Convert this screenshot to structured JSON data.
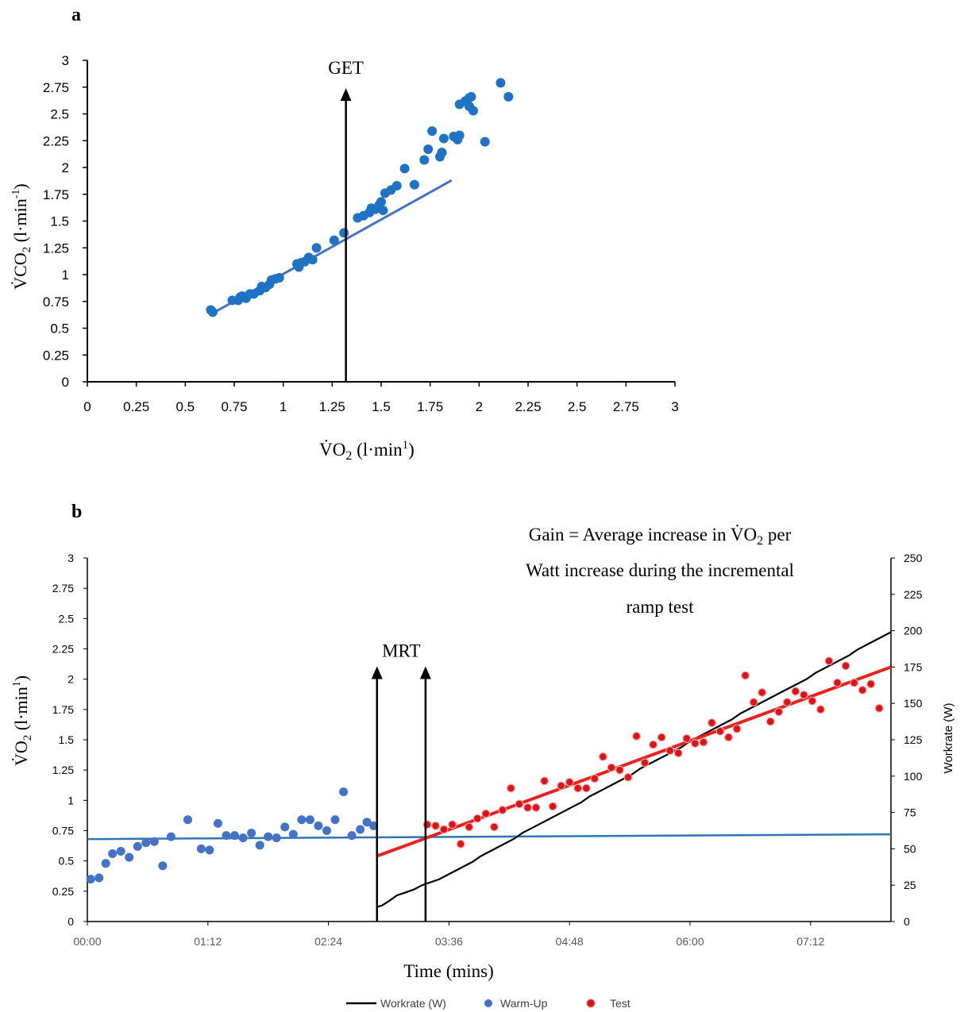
{
  "colors": {
    "warmup": "#4472C4",
    "scatter_a": "#1F72C4",
    "fit_a": "#4472C4",
    "test": "#E8221C",
    "test_fill": "#D8161A",
    "baseline": "#2E75B6",
    "workrate": "#000000",
    "axis": "#000000",
    "tick_gray": "#595959"
  },
  "chart_data": [
    {
      "panel_label": "a",
      "type": "scatter",
      "xlabel_main": "V̇O",
      "xlabel_sub": "2",
      "xlabel_rest": " (l·min",
      "xlabel_sup": "1",
      "xlabel_close": ")",
      "ylabel_main": "V̇CO",
      "ylabel_sub": "2",
      "ylabel_rest": " (l·min",
      "ylabel_sup": "-1",
      "ylabel_close": ")",
      "xlim": [
        0,
        3
      ],
      "ylim": [
        0,
        3
      ],
      "x_ticks": [
        "0",
        "0.25",
        "0.5",
        "0.75",
        "1",
        "1.25",
        "1.5",
        "1.75",
        "2",
        "2.25",
        "2.5",
        "2.75",
        "3"
      ],
      "y_ticks": [
        "0",
        "0.25",
        "0.5",
        "0.75",
        "1",
        "1.25",
        "1.5",
        "1.75",
        "2",
        "2.25",
        "2.5",
        "2.75",
        "3"
      ],
      "annotation": {
        "text": "GET",
        "x": 1.32,
        "y_top": 2.71
      },
      "fit_line": {
        "x": [
          0.64,
          1.86
        ],
        "y": [
          0.64,
          1.88
        ]
      },
      "points": [
        [
          0.63,
          0.67
        ],
        [
          0.64,
          0.65
        ],
        [
          0.74,
          0.76
        ],
        [
          0.77,
          0.76
        ],
        [
          0.78,
          0.79
        ],
        [
          0.79,
          0.8
        ],
        [
          0.81,
          0.78
        ],
        [
          0.83,
          0.82
        ],
        [
          0.85,
          0.82
        ],
        [
          0.88,
          0.85
        ],
        [
          0.89,
          0.89
        ],
        [
          0.91,
          0.88
        ],
        [
          0.93,
          0.91
        ],
        [
          0.94,
          0.95
        ],
        [
          0.96,
          0.96
        ],
        [
          0.98,
          0.97
        ],
        [
          1.07,
          1.1
        ],
        [
          1.08,
          1.07
        ],
        [
          1.09,
          1.11
        ],
        [
          1.11,
          1.12
        ],
        [
          1.13,
          1.16
        ],
        [
          1.15,
          1.14
        ],
        [
          1.17,
          1.25
        ],
        [
          1.26,
          1.32
        ],
        [
          1.31,
          1.39
        ],
        [
          1.38,
          1.53
        ],
        [
          1.41,
          1.55
        ],
        [
          1.44,
          1.58
        ],
        [
          1.45,
          1.62
        ],
        [
          1.47,
          1.61
        ],
        [
          1.49,
          1.65
        ],
        [
          1.5,
          1.68
        ],
        [
          1.51,
          1.6
        ],
        [
          1.52,
          1.76
        ],
        [
          1.55,
          1.79
        ],
        [
          1.58,
          1.83
        ],
        [
          1.62,
          1.99
        ],
        [
          1.67,
          1.84
        ],
        [
          1.72,
          2.07
        ],
        [
          1.74,
          2.17
        ],
        [
          1.76,
          2.34
        ],
        [
          1.8,
          2.1
        ],
        [
          1.81,
          2.14
        ],
        [
          1.82,
          2.27
        ],
        [
          1.87,
          2.29
        ],
        [
          1.89,
          2.26
        ],
        [
          1.9,
          2.3
        ],
        [
          1.9,
          2.59
        ],
        [
          1.93,
          2.62
        ],
        [
          1.95,
          2.57
        ],
        [
          1.95,
          2.65
        ],
        [
          1.96,
          2.66
        ],
        [
          1.97,
          2.53
        ],
        [
          2.03,
          2.24
        ],
        [
          2.11,
          2.79
        ],
        [
          2.15,
          2.66
        ]
      ]
    },
    {
      "panel_label": "b",
      "type": "scatter",
      "xlabel": "Time (mins)",
      "ylabel_main": "V̇O",
      "ylabel_sub": "2",
      "ylabel_rest": " (l·min",
      "ylabel_sup": "1",
      "ylabel_close": ")",
      "y2label": "Workrate (W)",
      "ylim": [
        0,
        3
      ],
      "y2lim": [
        0,
        250
      ],
      "xlim_seconds": [
        0,
        480
      ],
      "x_ticks": [
        "00:00",
        "01:12",
        "02:24",
        "03:36",
        "04:48",
        "06:00",
        "07:12"
      ],
      "y_ticks": [
        "0",
        "0.25",
        "0.5",
        "0.75",
        "1",
        "1.25",
        "1.5",
        "1.75",
        "2",
        "2.25",
        "2.5",
        "2.75",
        "3"
      ],
      "y2_ticks": [
        "0",
        "25",
        "50",
        "75",
        "100",
        "125",
        "150",
        "175",
        "200",
        "225",
        "250"
      ],
      "annotation": {
        "text": "MRT",
        "arrow_x_seconds": [
          173,
          202
        ],
        "y_top": 2.08
      },
      "gain_text": [
        "Gain = Average increase in V̇O",
        "2",
        " per",
        "Watt increase during the incremental",
        "ramp test"
      ],
      "legend": [
        "Workrate (W)",
        "Warm-Up",
        "Test"
      ],
      "baseline_line": {
        "x": [
          0,
          480
        ],
        "y": [
          0.68,
          0.72
        ]
      },
      "test_fit_line": {
        "x": [
          173,
          480
        ],
        "y": [
          0.54,
          2.1
        ]
      },
      "workrate_line": {
        "x": [
          173,
          176,
          180,
          185,
          190,
          195,
          200,
          205,
          210,
          215,
          220,
          225,
          230,
          235,
          240,
          245,
          250,
          255,
          260,
          265,
          270,
          275,
          280,
          285,
          290,
          295,
          300,
          305,
          310,
          315,
          320,
          325,
          330,
          335,
          340,
          345,
          350,
          355,
          360,
          365,
          370,
          375,
          380,
          385,
          390,
          395,
          400,
          405,
          410,
          415,
          420,
          425,
          430,
          435,
          440,
          445,
          450,
          455,
          460,
          465,
          470,
          475,
          480
        ],
        "y": [
          10,
          11,
          14,
          18,
          20,
          22,
          25,
          27,
          29,
          32,
          35,
          38,
          41,
          45,
          48,
          51,
          54,
          57,
          61,
          64,
          67,
          70,
          73,
          76,
          79,
          82,
          86,
          89,
          92,
          95,
          98,
          101,
          105,
          108,
          111,
          114,
          117,
          120,
          124,
          127,
          130,
          133,
          136,
          139,
          143,
          146,
          149,
          152,
          155,
          158,
          161,
          164,
          167,
          171,
          174,
          177,
          180,
          183,
          187,
          190,
          193,
          196,
          199
        ]
      },
      "warmup_points": [
        [
          2,
          0.35
        ],
        [
          7,
          0.36
        ],
        [
          11,
          0.48
        ],
        [
          15,
          0.56
        ],
        [
          20,
          0.58
        ],
        [
          25,
          0.53
        ],
        [
          30,
          0.62
        ],
        [
          35,
          0.65
        ],
        [
          40,
          0.66
        ],
        [
          45,
          0.46
        ],
        [
          50,
          0.7
        ],
        [
          60,
          0.84
        ],
        [
          68,
          0.6
        ],
        [
          73,
          0.59
        ],
        [
          78,
          0.81
        ],
        [
          83,
          0.71
        ],
        [
          88,
          0.71
        ],
        [
          93,
          0.69
        ],
        [
          98,
          0.73
        ],
        [
          103,
          0.63
        ],
        [
          108,
          0.7
        ],
        [
          113,
          0.69
        ],
        [
          118,
          0.78
        ],
        [
          123,
          0.72
        ],
        [
          128,
          0.84
        ],
        [
          133,
          0.84
        ],
        [
          138,
          0.79
        ],
        [
          143,
          0.75
        ],
        [
          148,
          0.84
        ],
        [
          153,
          1.07
        ],
        [
          158,
          0.71
        ],
        [
          163,
          0.76
        ],
        [
          167,
          0.82
        ],
        [
          171,
          0.79
        ]
      ],
      "test_points": [
        [
          203,
          0.8
        ],
        [
          208,
          0.79
        ],
        [
          213,
          0.76
        ],
        [
          218,
          0.8
        ],
        [
          223,
          0.64
        ],
        [
          228,
          0.78
        ],
        [
          233,
          0.85
        ],
        [
          238,
          0.89
        ],
        [
          243,
          0.78
        ],
        [
          248,
          0.92
        ],
        [
          253,
          1.1
        ],
        [
          258,
          0.97
        ],
        [
          263,
          0.94
        ],
        [
          268,
          0.94
        ],
        [
          273,
          1.16
        ],
        [
          278,
          0.95
        ],
        [
          283,
          1.12
        ],
        [
          288,
          1.15
        ],
        [
          293,
          1.1
        ],
        [
          298,
          1.1
        ],
        [
          303,
          1.18
        ],
        [
          308,
          1.36
        ],
        [
          313,
          1.27
        ],
        [
          318,
          1.25
        ],
        [
          323,
          1.19
        ],
        [
          328,
          1.53
        ],
        [
          333,
          1.31
        ],
        [
          338,
          1.46
        ],
        [
          343,
          1.52
        ],
        [
          348,
          1.41
        ],
        [
          353,
          1.39
        ],
        [
          358,
          1.51
        ],
        [
          363,
          1.47
        ],
        [
          368,
          1.48
        ],
        [
          373,
          1.64
        ],
        [
          378,
          1.57
        ],
        [
          383,
          1.52
        ],
        [
          388,
          1.59
        ],
        [
          393,
          2.03
        ],
        [
          398,
          1.81
        ],
        [
          403,
          1.89
        ],
        [
          408,
          1.65
        ],
        [
          413,
          1.73
        ],
        [
          418,
          1.81
        ],
        [
          423,
          1.9
        ],
        [
          428,
          1.87
        ],
        [
          433,
          1.82
        ],
        [
          438,
          1.75
        ],
        [
          443,
          2.15
        ],
        [
          448,
          1.97
        ],
        [
          453,
          2.11
        ],
        [
          458,
          1.97
        ],
        [
          463,
          1.91
        ],
        [
          468,
          1.96
        ],
        [
          473,
          1.76
        ]
      ]
    }
  ]
}
